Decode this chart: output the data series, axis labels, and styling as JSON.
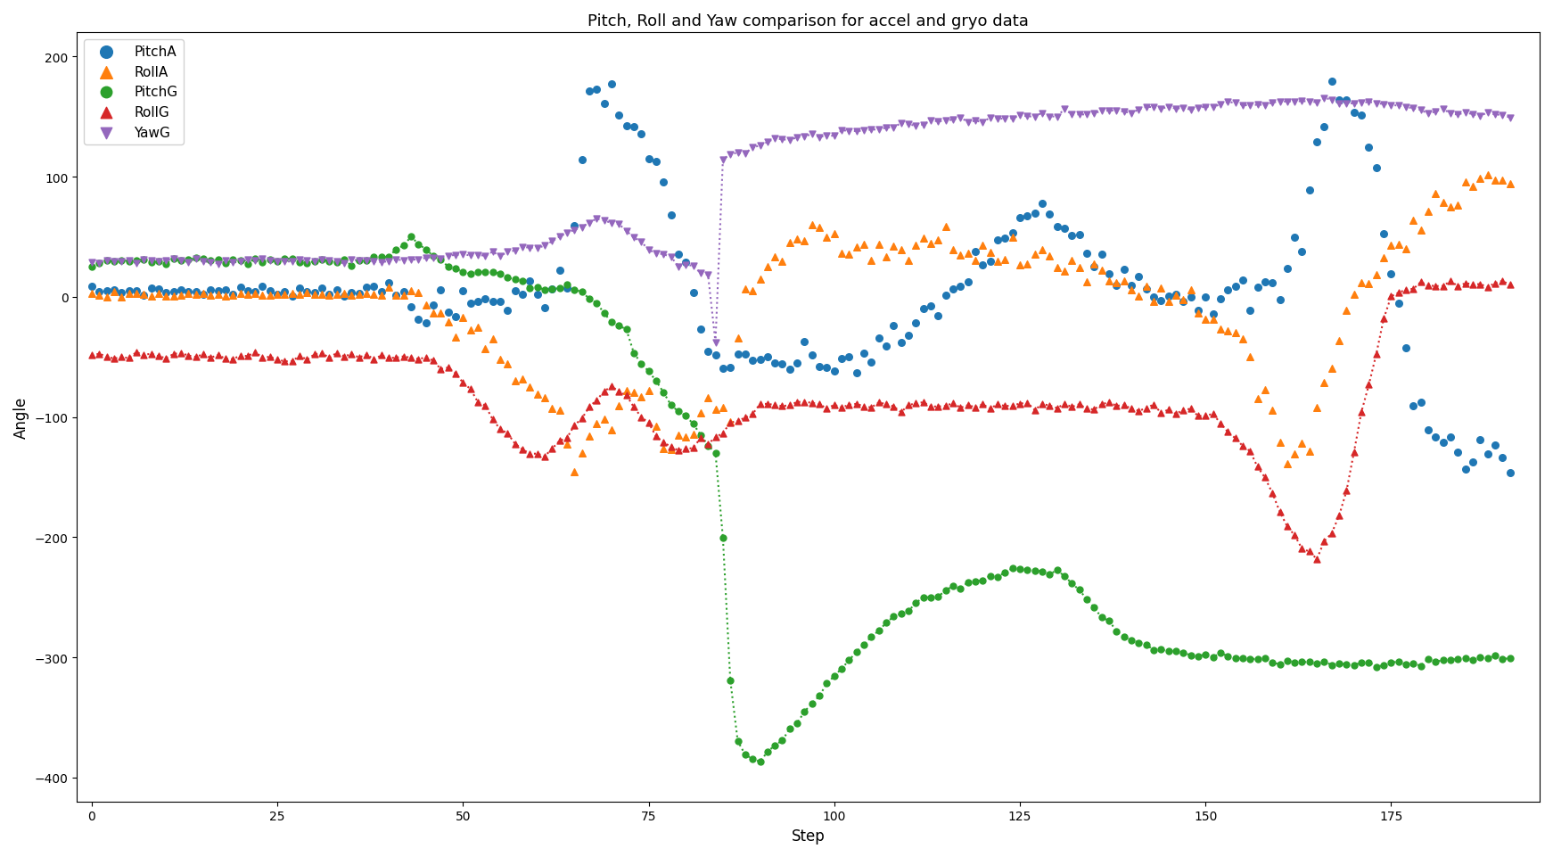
{
  "title": "Pitch, Roll and Yaw comparison for accel and gryo data",
  "xlabel": "Step",
  "ylabel": "Angle",
  "xlim": [
    -2,
    195
  ],
  "ylim": [
    -420,
    220
  ],
  "series": {
    "PitchA": {
      "color": "#1f77b4",
      "marker": "o"
    },
    "RollA": {
      "color": "#ff7f0e",
      "marker": "^"
    },
    "PitchG": {
      "color": "#2ca02c",
      "marker": "o"
    },
    "RollG": {
      "color": "#d62728",
      "marker": "^"
    },
    "YawG": {
      "color": "#9467bd",
      "marker": "v"
    }
  }
}
